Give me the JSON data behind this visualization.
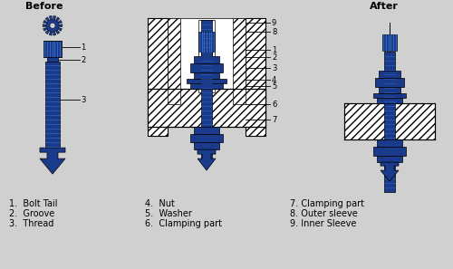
{
  "bg_color": "#d0d0d0",
  "blue": "#1a3a8c",
  "white": "#ffffff",
  "title_before": "Before",
  "title_after": "After",
  "legend": [
    "1.  Bolt Tail",
    "2.  Groove",
    "3.  Thread",
    "4.  Nut",
    "5.  Washer",
    "6.  Clamping part",
    "7. Clamping part",
    "8. Outer sleeve",
    "9. Inner Sleeve"
  ]
}
